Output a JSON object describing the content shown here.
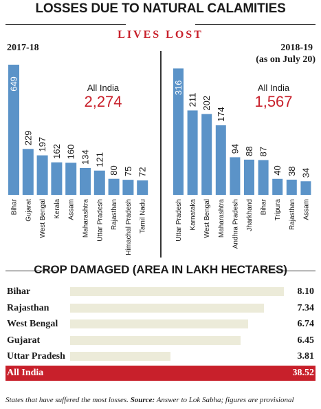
{
  "title": "LOSSES DUE TO NATURAL CALAMITIES",
  "subtitle": "LIVES LOST",
  "colors": {
    "bar": "#5b93c8",
    "accent": "#c8202b",
    "crop_bar": "#ecebd9"
  },
  "chart_data": [
    {
      "type": "bar",
      "period": "2017-18",
      "total_label": "All India",
      "total_value": "2,274",
      "categories": [
        "Bihar",
        "Gujarat",
        "West Bengal",
        "Kerala",
        "Assam",
        "Maharashtra",
        "Uttar Pradesh",
        "Rajasthan",
        "Himachal Pradesh",
        "Tamil Nadu"
      ],
      "values": [
        649,
        229,
        197,
        162,
        160,
        134,
        121,
        80,
        75,
        72
      ]
    },
    {
      "type": "bar",
      "period": "2018-19",
      "period_note": "(as on July 20)",
      "total_label": "All India",
      "total_value": "1,567",
      "categories": [
        "Uttar Pradesh",
        "Karnataka",
        "West Bengal",
        "Maharashtra",
        "Andhra Pradesh",
        "Jharkhand",
        "Bihar",
        "Tripura",
        "Rajasthan",
        "Assam"
      ],
      "values": [
        316,
        211,
        202,
        174,
        94,
        88,
        87,
        40,
        38,
        34
      ]
    },
    {
      "type": "bar",
      "orientation": "horizontal",
      "title": "CROP DAMAGED (AREA IN LAKH HECTARES)",
      "categories": [
        "Bihar",
        "Rajasthan",
        "West Bengal",
        "Gujarat",
        "Uttar Pradesh"
      ],
      "values": [
        8.1,
        7.34,
        6.74,
        6.45,
        3.81
      ],
      "value_labels": [
        "8.10",
        "7.34",
        "6.74",
        "6.45",
        "3.81"
      ],
      "total": {
        "label": "All India",
        "value": "38.52"
      }
    }
  ],
  "footnote": {
    "lead": "States that have suffered the most losses.",
    "source_label": "Source:",
    "source_text": "Answer to Lok Sabha; figures are provisional"
  }
}
